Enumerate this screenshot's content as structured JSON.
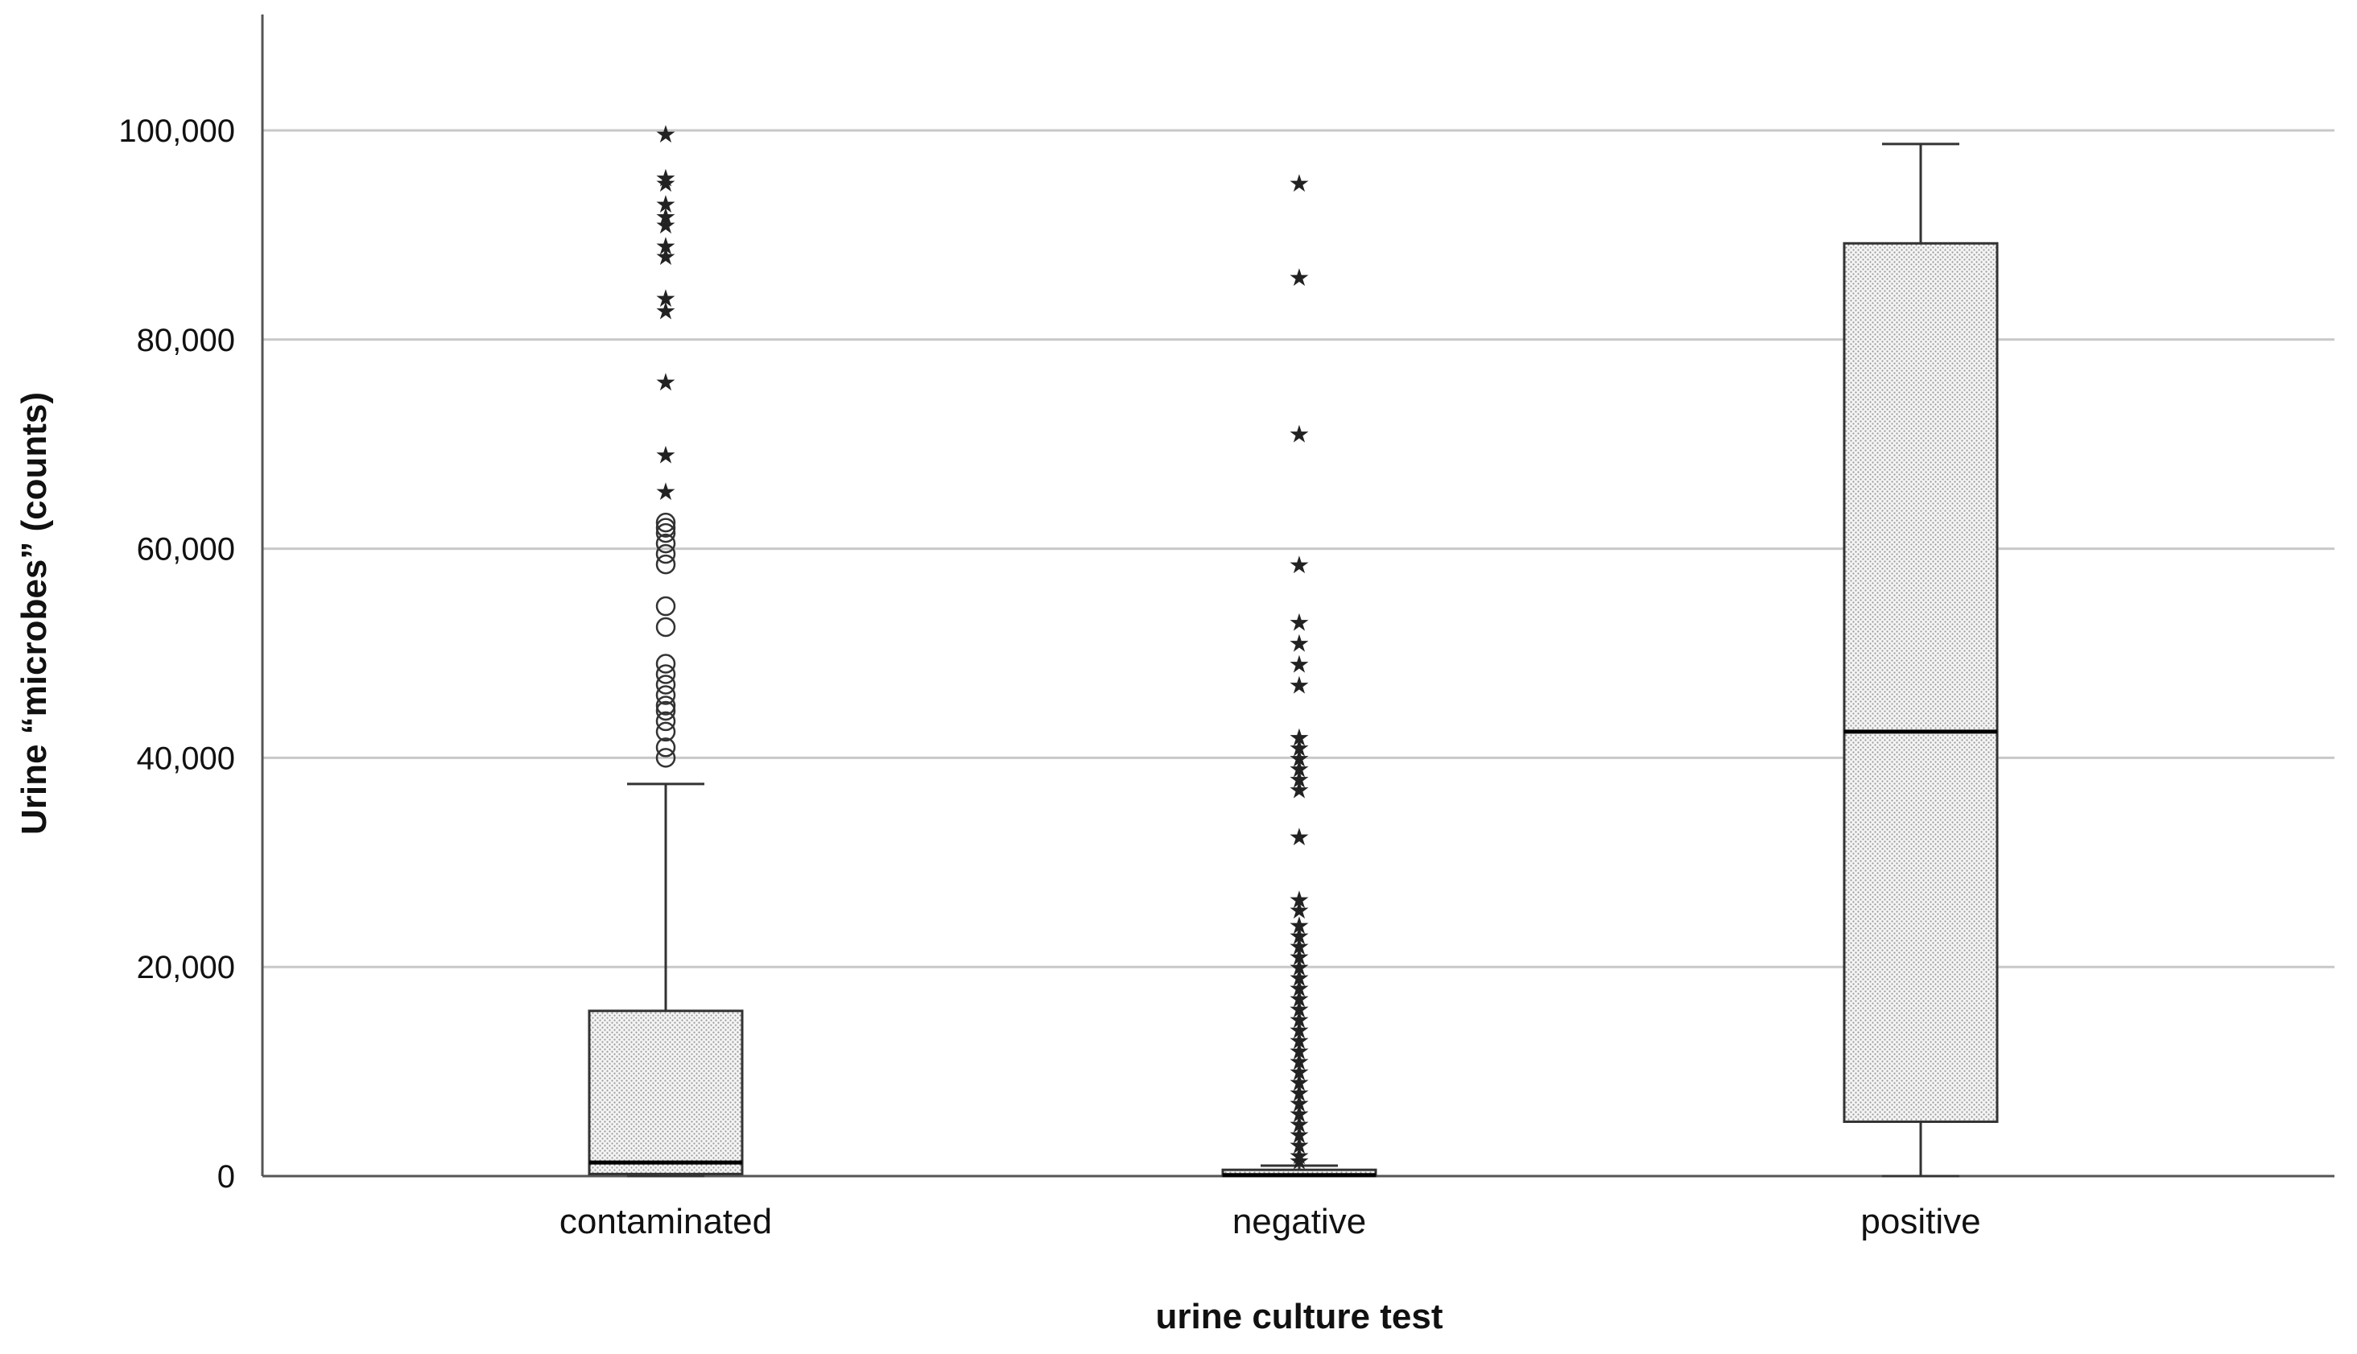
{
  "chart_data": {
    "type": "box",
    "xlabel": "urine culture test",
    "ylabel": "Urine “microbes” (counts)",
    "ylim": [
      0,
      110000
    ],
    "yticks": [
      0,
      20000,
      40000,
      60000,
      80000,
      100000
    ],
    "ytick_labels": [
      "0",
      "20,000",
      "40,000",
      "60,000",
      "80,000",
      "100,000"
    ],
    "grid": true,
    "categories": [
      "contaminated",
      "negative",
      "positive"
    ],
    "boxes": [
      {
        "category": "contaminated",
        "whisker_low": 0,
        "q1": 200,
        "median": 1300,
        "q3": 15800,
        "whisker_high": 37500,
        "outliers_circle": [
          40000,
          41000,
          42500,
          43500,
          44500,
          45000,
          46000,
          47000,
          48000,
          49000,
          52500,
          54500,
          58500,
          59500,
          60500,
          61500,
          62000,
          62500
        ],
        "outliers_star": [
          65500,
          69000,
          76000,
          82800,
          84000,
          88000,
          89000,
          91000,
          91800,
          93000,
          95000,
          95500,
          99700
        ]
      },
      {
        "category": "negative",
        "whisker_low": 0,
        "q1": 0,
        "median": 100,
        "q3": 600,
        "whisker_high": 1000,
        "outliers_circle": [],
        "outliers_star": [
          1500,
          2000,
          3000,
          4000,
          5000,
          6000,
          7000,
          8000,
          9000,
          10000,
          11000,
          12000,
          13000,
          14000,
          15000,
          16000,
          17000,
          18000,
          19000,
          20000,
          21000,
          22000,
          23000,
          24000,
          25500,
          26500,
          32500,
          37000,
          38000,
          39000,
          40000,
          41000,
          42000,
          47000,
          49000,
          51000,
          53000,
          58500,
          71000,
          86000,
          95000
        ]
      },
      {
        "category": "positive",
        "whisker_low": 0,
        "q1": 5200,
        "median": 42500,
        "q3": 89200,
        "whisker_high": 98700,
        "outliers_circle": [],
        "outliers_star": []
      }
    ]
  }
}
